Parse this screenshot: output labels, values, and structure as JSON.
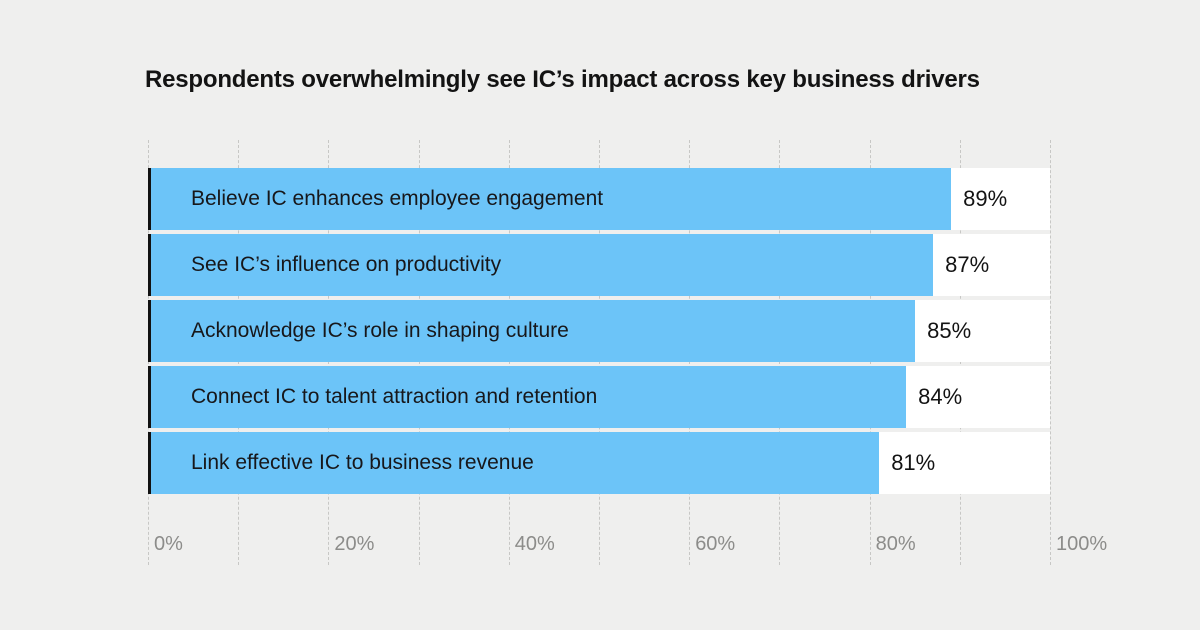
{
  "title": "Respondents overwhelmingly see IC’s impact across key business drivers",
  "chart_data": {
    "type": "bar",
    "orientation": "horizontal",
    "title": "Respondents overwhelmingly see IC’s impact across key business drivers",
    "categories": [
      "Believe IC enhances employee engagement",
      "See IC’s influence on productivity",
      "Acknowledge IC’s role in shaping culture",
      "Connect IC to talent attraction and retention",
      "Link effective IC to business revenue"
    ],
    "values": [
      89,
      87,
      85,
      84,
      81
    ],
    "value_labels": [
      "89%",
      "87%",
      "85%",
      "84%",
      "81%"
    ],
    "x_tick_labels": [
      "0%",
      "20%",
      "40%",
      "60%",
      "80%",
      "100%"
    ],
    "xlim": [
      0,
      100
    ],
    "gridline_step_percent": 10,
    "grid": "dashed-vertical",
    "legend": "none",
    "colors": {
      "bar": "#6cc4f8",
      "track": "#ffffff",
      "axis_line": "#121212",
      "background": "#efefee",
      "tick_label": "#8c8c8a",
      "gridline": "#c7c7c5"
    }
  }
}
